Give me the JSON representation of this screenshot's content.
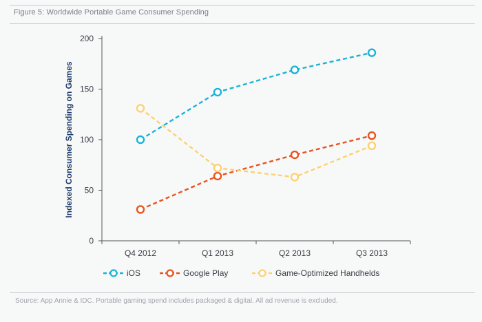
{
  "figure": {
    "title": "Figure 5:  Worldwide Portable Game Consumer Spending",
    "source": "Source: App Annie & IDC. Portable gaming spend includes packaged & digital. All ad revenue is excluded."
  },
  "chart_data": {
    "type": "line",
    "title": "",
    "xlabel": "",
    "ylabel": "Indexed Consumer Spending on Games",
    "categories": [
      "Q4 2012",
      "Q1 2013",
      "Q2 2013",
      "Q3 2013"
    ],
    "ylim": [
      0,
      200
    ],
    "yticks": [
      0,
      50,
      100,
      150,
      200
    ],
    "grid": false,
    "legend": "bottom",
    "series": [
      {
        "name": "iOS",
        "values": [
          100,
          147,
          169,
          186
        ],
        "color": "#1ab3d8"
      },
      {
        "name": "Google Play",
        "values": [
          31,
          64,
          85,
          104
        ],
        "color": "#e8531f"
      },
      {
        "name": "Game-Optimized Handhelds",
        "values": [
          131,
          72,
          63,
          94
        ],
        "color": "#fdd170"
      }
    ]
  }
}
